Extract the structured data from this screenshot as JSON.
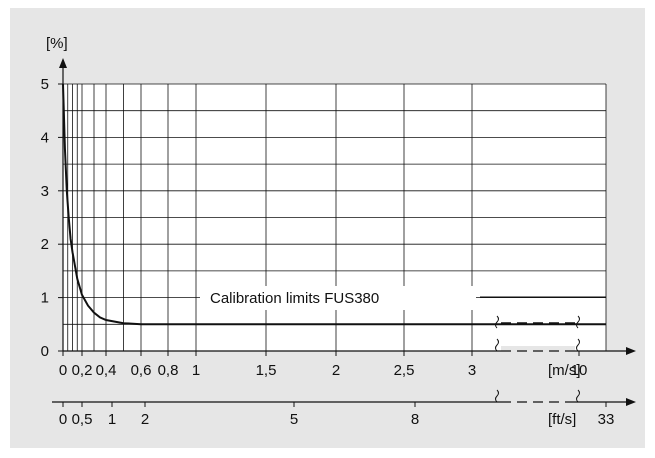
{
  "chart_data": {
    "type": "line",
    "ylabel": "[%]",
    "ylim": [
      0,
      5
    ],
    "y_ticks": [
      "0",
      "1",
      "2",
      "3",
      "4",
      "5"
    ],
    "x_ticks_ms": [
      {
        "v": 0,
        "label": "0"
      },
      {
        "v": 0.2,
        "label": "0,2"
      },
      {
        "v": 0.4,
        "label": "0,4"
      },
      {
        "v": 0.6,
        "label": "0,6"
      },
      {
        "v": 0.8,
        "label": "0,8"
      },
      {
        "v": 1,
        "label": "1"
      },
      {
        "v": 1.5,
        "label": "1,5"
      },
      {
        "v": 2,
        "label": "2"
      },
      {
        "v": 2.5,
        "label": "2,5"
      },
      {
        "v": 3,
        "label": "3"
      },
      {
        "v": 10,
        "label": "10"
      }
    ],
    "x_unit_ms": "[m/s]",
    "x_ticks_fts": [
      {
        "v": 0,
        "label": "0"
      },
      {
        "v": 0.5,
        "label": "0,5"
      },
      {
        "v": 1,
        "label": "1"
      },
      {
        "v": 2,
        "label": "2"
      },
      {
        "v": 5,
        "label": "5"
      },
      {
        "v": 8,
        "label": "8"
      },
      {
        "v": 33,
        "label": "33"
      }
    ],
    "x_unit_fts": "[ft/s]",
    "annotation": "Calibration limits FUS380",
    "series": [
      {
        "x": [
          0,
          0.02,
          0.04,
          0.06,
          0.08,
          0.1,
          0.15,
          0.2,
          0.25,
          0.3,
          0.35,
          0.4,
          0.5,
          0.6,
          1,
          2,
          3,
          10
        ],
        "y": [
          5,
          3.8,
          3.0,
          2.5,
          2.1,
          1.85,
          1.35,
          1.05,
          0.85,
          0.72,
          0.63,
          0.58,
          0.52,
          0.5,
          0.5,
          0.5,
          0.5,
          0.5
        ]
      }
    ],
    "grid": true
  },
  "colors": {
    "line": "#111111",
    "grid": "#111111",
    "panel": "#e6e6e6",
    "plot": "#ffffff"
  }
}
